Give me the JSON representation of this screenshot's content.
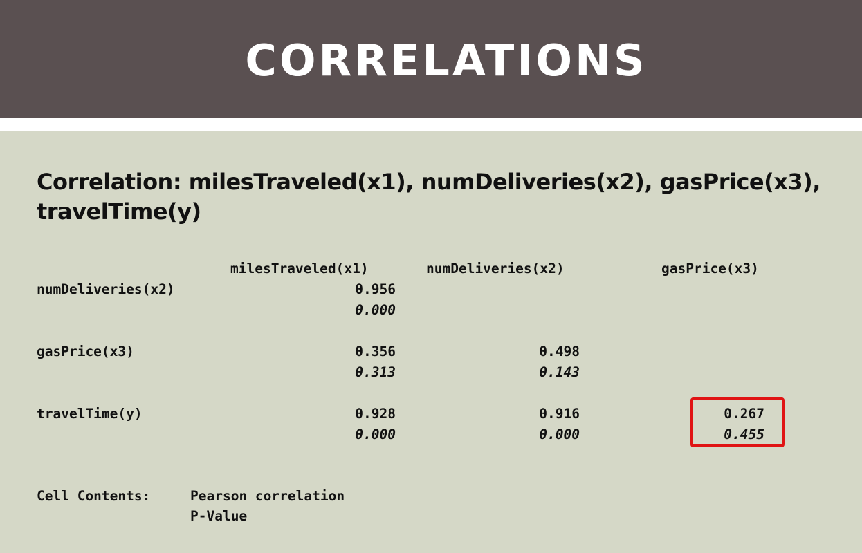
{
  "slide": {
    "title": "CORRELATIONS",
    "subtitle": "Correlation: milesTraveled(x1), numDeliveries(x2), gasPrice(x3), travelTime(y)"
  },
  "table": {
    "columns": [
      "milesTraveled(x1)",
      "numDeliveries(x2)",
      "gasPrice(x3)"
    ],
    "rows": [
      {
        "label": "numDeliveries(x2)",
        "pearson": [
          "0.956",
          "",
          ""
        ],
        "pvalue": [
          "0.000",
          "",
          ""
        ]
      },
      {
        "label": "gasPrice(x3)",
        "pearson": [
          "0.356",
          "0.498",
          ""
        ],
        "pvalue": [
          "0.313",
          "0.143",
          ""
        ]
      },
      {
        "label": "travelTime(y)",
        "pearson": [
          "0.928",
          "0.916",
          "0.267"
        ],
        "pvalue": [
          "0.000",
          "0.000",
          "0.455"
        ]
      }
    ]
  },
  "footer": {
    "cell_contents_label": "Cell Contents:",
    "line1": "Pearson correlation",
    "line2": "P-Value"
  },
  "colors": {
    "header_bg": "#5a5051",
    "content_bg": "#d5d8c7",
    "highlight": "#e01414"
  }
}
